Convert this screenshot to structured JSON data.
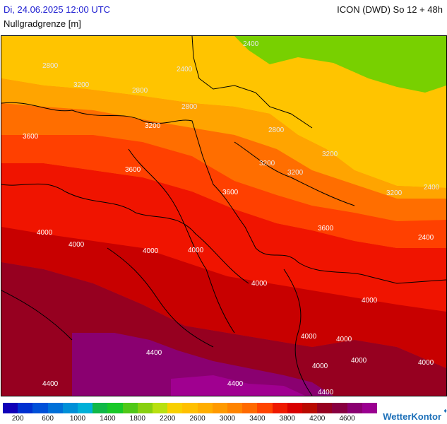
{
  "header": {
    "datetime": "Di, 24.06.2025 12:00 UTC",
    "parameter": "Nullgradgrenze [m]",
    "model": "ICON (DWD) So 12 + 48h"
  },
  "map": {
    "isolines": [
      "2800",
      "2400",
      "3200",
      "2800",
      "2400",
      "2800",
      "3200",
      "3600",
      "2800",
      "3200",
      "3200",
      "3200",
      "3600",
      "3200",
      "2400",
      "3600",
      "3600",
      "4000",
      "4000",
      "4000",
      "4000",
      "4000",
      "4000",
      "4000",
      "4000",
      "4000",
      "4000",
      "4400",
      "4400",
      "4400",
      "4000",
      "4400",
      "2400"
    ]
  },
  "legend": {
    "colors": [
      "#1000b8",
      "#0030d0",
      "#0050d8",
      "#0070d8",
      "#0090d8",
      "#00b0d8",
      "#10b848",
      "#18c828",
      "#50c818",
      "#88d010",
      "#b8e010",
      "#f8d000",
      "#ffc000",
      "#ffae00",
      "#ff9a00",
      "#ff8400",
      "#ff6a00",
      "#ff4400",
      "#ee1a00",
      "#d80000",
      "#b80a00",
      "#960020",
      "#880040",
      "#8a0070",
      "#9a0090"
    ],
    "ticks": [
      "200",
      "600",
      "1000",
      "1400",
      "1800",
      "2200",
      "2600",
      "3000",
      "3400",
      "3800",
      "4200",
      "4600"
    ]
  },
  "brand": {
    "name": "WetterKontor",
    "mark": "♦"
  }
}
